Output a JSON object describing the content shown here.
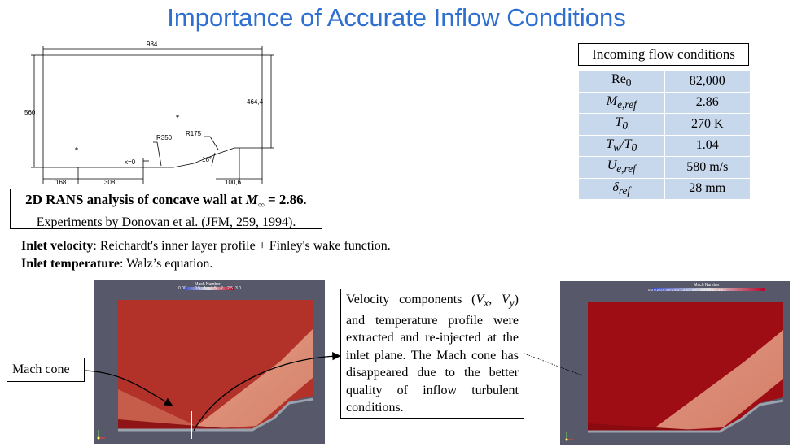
{
  "title": "Importance of Accurate Inflow Conditions",
  "drawing": {
    "dim_top": "984",
    "dim_left": "560",
    "dim_right": "464,4",
    "dim_bottom": [
      "168",
      "308",
      "100,6"
    ],
    "label_r350": "R350",
    "label_r175": "R175",
    "label_x0": "x=0",
    "label_angle": "16°"
  },
  "caption": {
    "line1_prefix": "2D RANS analysis of concave wall at ",
    "line1_symbol": "M",
    "line1_sub": "∞",
    "line1_suffix": " = 2.86",
    "line1_end": ".",
    "line2": "Experiments by Donovan et al. (JFM, 259, 1994)."
  },
  "inlet": {
    "velocity_label": "Inlet velocity",
    "velocity_text": ": Reichardt's inner layer profile + Finley's wake function.",
    "temperature_label": "Inlet temperature",
    "temperature_text": ": Walz’s equation."
  },
  "table": {
    "header": "Incoming flow conditions",
    "rows": [
      {
        "sym": "Re",
        "sub": "0",
        "value": "82,000"
      },
      {
        "sym": "M",
        "sub": "e,ref",
        "value": "2.86"
      },
      {
        "sym": "T",
        "sub": "0",
        "value": "270 K"
      },
      {
        "sym": "T",
        "sub": "w",
        "sym2": "/T",
        "sub2": "0",
        "value": "1.04"
      },
      {
        "sym": "U",
        "sub": "e,ref",
        "value": "580 m/s"
      },
      {
        "sym": "δ",
        "sub": "ref",
        "value": "28 mm"
      }
    ]
  },
  "sim_left": {
    "colorbar_title": "Mach Number",
    "colorbar_ticks": [
      "0.00",
      "0.5",
      "1",
      "1.5",
      "2",
      "2.5",
      "3.0"
    ]
  },
  "sim_right": {
    "colorbar_title": "Mach Number",
    "colorbar_ticks": "0.0 0.2 0.4 0.6 0.8  1  1.2 1.4 1.6 1.8  2  2.2 2.4 2.6  3"
  },
  "callouts": {
    "mach_cone": "Mach cone",
    "desc_p1": "Velocity components (",
    "desc_vx": "V",
    "desc_vx_sub": "x",
    "desc_comma": ", ",
    "desc_vy": "V",
    "desc_vy_sub": "y",
    "desc_p2": ") and temperature profile were extracted and re-injected at the inlet plane. The Mach cone has disappeared due to the better quality of inflow turbulent conditions."
  },
  "colors": {
    "title": "#2e6fcf",
    "table_cell": "#c7d7ec",
    "flow_red": "#b2322a",
    "flow_deep_red": "#9e0d14",
    "plot_bg": "#57596a"
  }
}
